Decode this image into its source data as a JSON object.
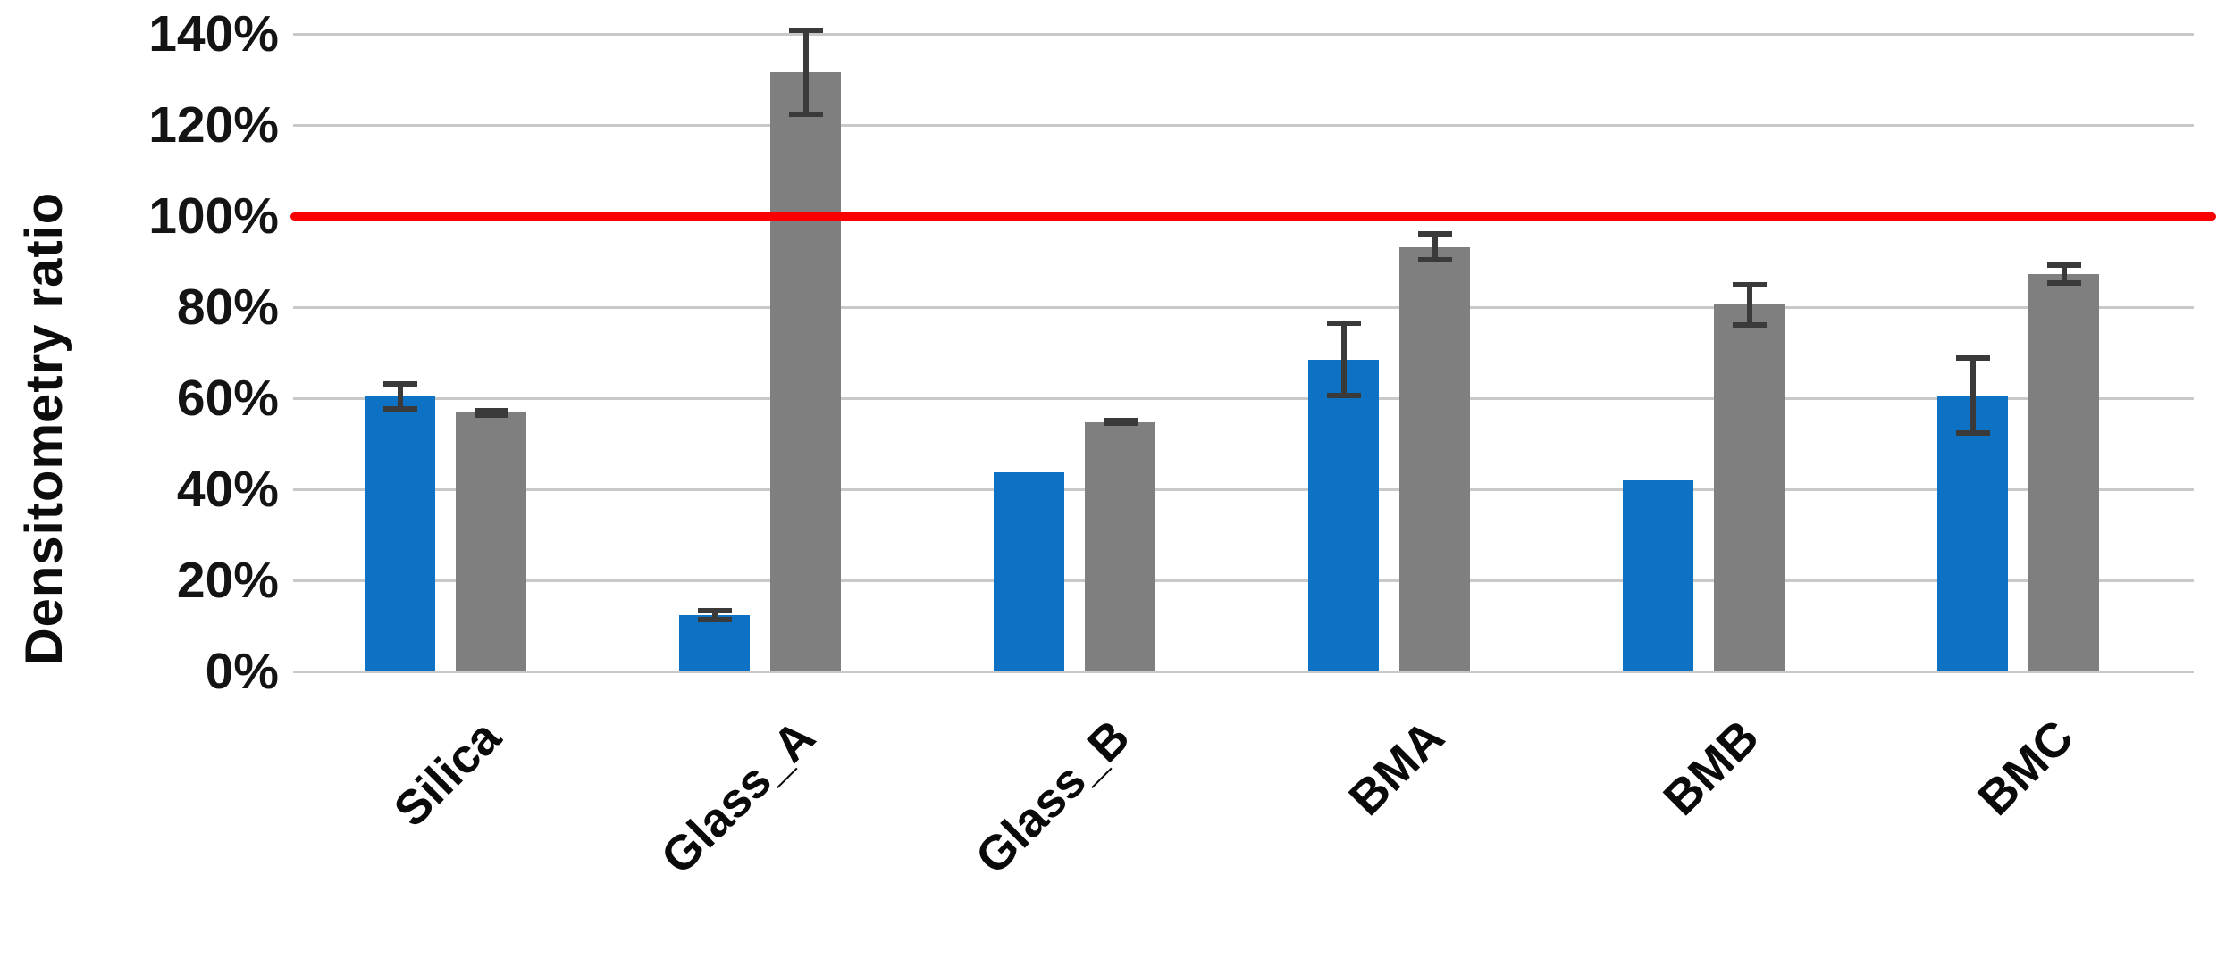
{
  "chart_data": {
    "type": "bar",
    "title": "",
    "ylabel": "Densitometry ratio",
    "xlabel": "",
    "categories": [
      "Silica",
      "Glass_A",
      "Glass_B",
      "BMA",
      "BMB",
      "BMC"
    ],
    "series": [
      {
        "key": "blue_series",
        "color": "#0D72C4",
        "values": [
          60.4,
          12.3,
          43.8,
          68.5,
          41.9,
          60.6
        ],
        "errors": [
          3.4,
          1.6,
          null,
          8.5,
          null,
          8.8
        ]
      },
      {
        "key": "gray_series",
        "color": "#7F7F7F",
        "values": [
          56.8,
          131.5,
          54.8,
          93.2,
          80.5,
          87.3
        ],
        "errors": [
          1.1,
          9.8,
          0.9,
          3.4,
          5.0,
          2.6
        ]
      }
    ],
    "y_ticks": [
      {
        "value": 0,
        "label": "0%"
      },
      {
        "value": 20,
        "label": "20%"
      },
      {
        "value": 40,
        "label": "40%"
      },
      {
        "value": 60,
        "label": "60%"
      },
      {
        "value": 80,
        "label": "80%"
      },
      {
        "value": 100,
        "label": "100%"
      },
      {
        "value": 120,
        "label": "120%"
      },
      {
        "value": 140,
        "label": "140%"
      }
    ],
    "ylim": [
      0,
      140
    ],
    "grid": true,
    "legend": "none",
    "reference_line": {
      "value": 100,
      "color": "#FB0000"
    },
    "error_bar_color": "#3A3A3A",
    "gridline_color": "#C9C9C9"
  }
}
